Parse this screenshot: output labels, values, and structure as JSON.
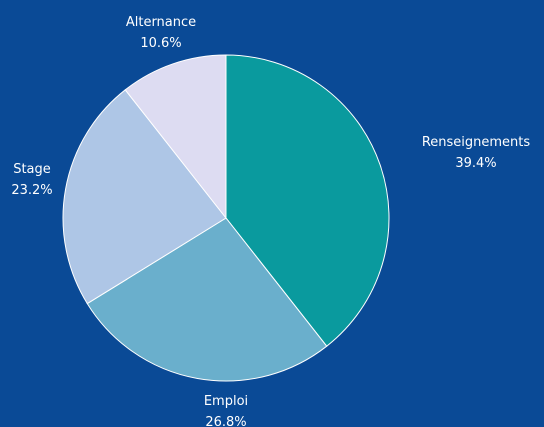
{
  "chart_data": {
    "type": "pie",
    "slices": [
      {
        "label": "Renseignements",
        "value": 39.4,
        "value_label": "39.4%",
        "color": "#0a9a9e"
      },
      {
        "label": "Emploi",
        "value": 26.8,
        "value_label": "26.8%",
        "color": "#6aafcc"
      },
      {
        "label": "Stage",
        "value": 23.2,
        "value_label": "23.2%",
        "color": "#aec6e6"
      },
      {
        "label": "Alternance",
        "value": 10.6,
        "value_label": "10.6%",
        "color": "#dddcf2"
      }
    ],
    "start": "12 o'clock",
    "direction": "clockwise",
    "background": "#0a4a96",
    "slice_border": "#ffffff"
  }
}
